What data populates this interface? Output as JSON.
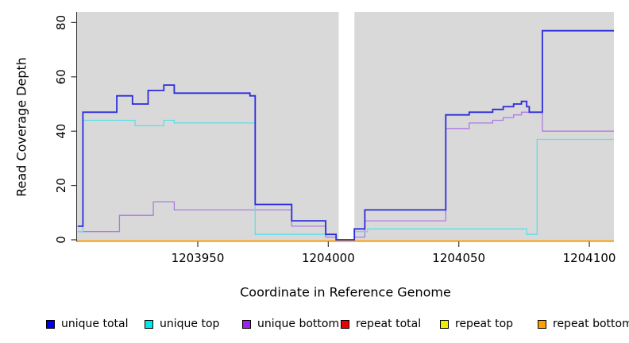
{
  "figure": {
    "background": "#FFFFFF",
    "panel_background": "#D9D9D9",
    "axis_color": "#333333",
    "text_color": "#000000"
  },
  "chart_data": {
    "type": "line",
    "line_style": "step",
    "title": "",
    "xlabel": "Coordinate in Reference Genome",
    "ylabel": "Read Coverage Depth",
    "xlim": [
      1203904,
      1204110
    ],
    "ylim": [
      0,
      80
    ],
    "x_ticks": [
      1203950,
      1204000,
      1204050,
      1204100
    ],
    "y_ticks": [
      0,
      20,
      40,
      60,
      80
    ],
    "grid": false,
    "legend_position": "bottom",
    "gap_region": {
      "x_start": 1204004,
      "x_end": 1204010,
      "color": "#FFFFFF"
    },
    "series": [
      {
        "name": "unique total",
        "line_color": "#2B2BDC",
        "legend_color": "#0000EE",
        "line_width": 1.8,
        "points": [
          [
            1203904,
            5
          ],
          [
            1203906,
            5
          ],
          [
            1203906,
            47
          ],
          [
            1203919,
            47
          ],
          [
            1203919,
            53
          ],
          [
            1203925,
            53
          ],
          [
            1203925,
            50
          ],
          [
            1203931,
            50
          ],
          [
            1203931,
            55
          ],
          [
            1203937,
            55
          ],
          [
            1203937,
            57
          ],
          [
            1203941,
            57
          ],
          [
            1203941,
            54
          ],
          [
            1203970,
            54
          ],
          [
            1203970,
            53
          ],
          [
            1203972,
            53
          ],
          [
            1203972,
            13
          ],
          [
            1203986,
            13
          ],
          [
            1203986,
            7
          ],
          [
            1203999,
            7
          ],
          [
            1203999,
            2
          ],
          [
            1204003,
            2
          ],
          [
            1204003,
            0
          ],
          [
            1204010,
            0
          ],
          [
            1204010,
            4
          ],
          [
            1204014,
            4
          ],
          [
            1204014,
            11
          ],
          [
            1204045,
            11
          ],
          [
            1204045,
            46
          ],
          [
            1204054,
            46
          ],
          [
            1204054,
            47
          ],
          [
            1204063,
            47
          ],
          [
            1204063,
            48
          ],
          [
            1204067,
            48
          ],
          [
            1204067,
            49
          ],
          [
            1204071,
            49
          ],
          [
            1204071,
            50
          ],
          [
            1204074,
            50
          ],
          [
            1204074,
            51
          ],
          [
            1204076,
            51
          ],
          [
            1204076,
            49
          ],
          [
            1204077,
            49
          ],
          [
            1204077,
            47
          ],
          [
            1204082,
            47
          ],
          [
            1204082,
            77
          ],
          [
            1204110,
            77
          ]
        ]
      },
      {
        "name": "unique top",
        "line_color": "#5CDEE9",
        "legend_color": "#00E5E5",
        "line_width": 1.3,
        "points": [
          [
            1203904,
            3
          ],
          [
            1203906,
            3
          ],
          [
            1203906,
            44
          ],
          [
            1203926,
            44
          ],
          [
            1203926,
            42
          ],
          [
            1203937,
            42
          ],
          [
            1203937,
            44
          ],
          [
            1203941,
            44
          ],
          [
            1203941,
            43
          ],
          [
            1203972,
            43
          ],
          [
            1203972,
            2
          ],
          [
            1204003,
            2
          ],
          [
            1204003,
            0
          ],
          [
            1204010,
            0
          ],
          [
            1204010,
            3
          ],
          [
            1204015,
            3
          ],
          [
            1204015,
            4
          ],
          [
            1204076,
            4
          ],
          [
            1204076,
            2
          ],
          [
            1204080,
            2
          ],
          [
            1204080,
            37
          ],
          [
            1204110,
            37
          ]
        ]
      },
      {
        "name": "unique bottom",
        "line_color": "#AD7BE0",
        "legend_color": "#A020F0",
        "line_width": 1.3,
        "points": [
          [
            1203904,
            3
          ],
          [
            1203920,
            3
          ],
          [
            1203920,
            9
          ],
          [
            1203933,
            9
          ],
          [
            1203933,
            14
          ],
          [
            1203941,
            14
          ],
          [
            1203941,
            11
          ],
          [
            1203986,
            11
          ],
          [
            1203986,
            5
          ],
          [
            1203999,
            5
          ],
          [
            1203999,
            1
          ],
          [
            1204003,
            1
          ],
          [
            1204003,
            0
          ],
          [
            1204010,
            0
          ],
          [
            1204010,
            1
          ],
          [
            1204014,
            1
          ],
          [
            1204014,
            7
          ],
          [
            1204045,
            7
          ],
          [
            1204045,
            41
          ],
          [
            1204054,
            41
          ],
          [
            1204054,
            43
          ],
          [
            1204063,
            43
          ],
          [
            1204063,
            44
          ],
          [
            1204067,
            44
          ],
          [
            1204067,
            45
          ],
          [
            1204071,
            45
          ],
          [
            1204071,
            46
          ],
          [
            1204074,
            46
          ],
          [
            1204074,
            47
          ],
          [
            1204082,
            47
          ],
          [
            1204082,
            40
          ],
          [
            1204110,
            40
          ]
        ]
      },
      {
        "name": "repeat total",
        "line_color": "#DD1111",
        "legend_color": "#EE0000",
        "line_width": 1.3,
        "points": [
          [
            1203904,
            0
          ],
          [
            1204110,
            0
          ]
        ]
      },
      {
        "name": "repeat top",
        "line_color": "#E8E800",
        "legend_color": "#EEEE00",
        "line_width": 1.3,
        "points": [
          [
            1203904,
            0
          ],
          [
            1204110,
            0
          ]
        ]
      },
      {
        "name": "repeat bottom",
        "line_color": "#FFA500",
        "legend_color": "#FFA000",
        "line_width": 1.6,
        "points": [
          [
            1203904,
            0
          ],
          [
            1204110,
            0
          ]
        ]
      }
    ]
  }
}
